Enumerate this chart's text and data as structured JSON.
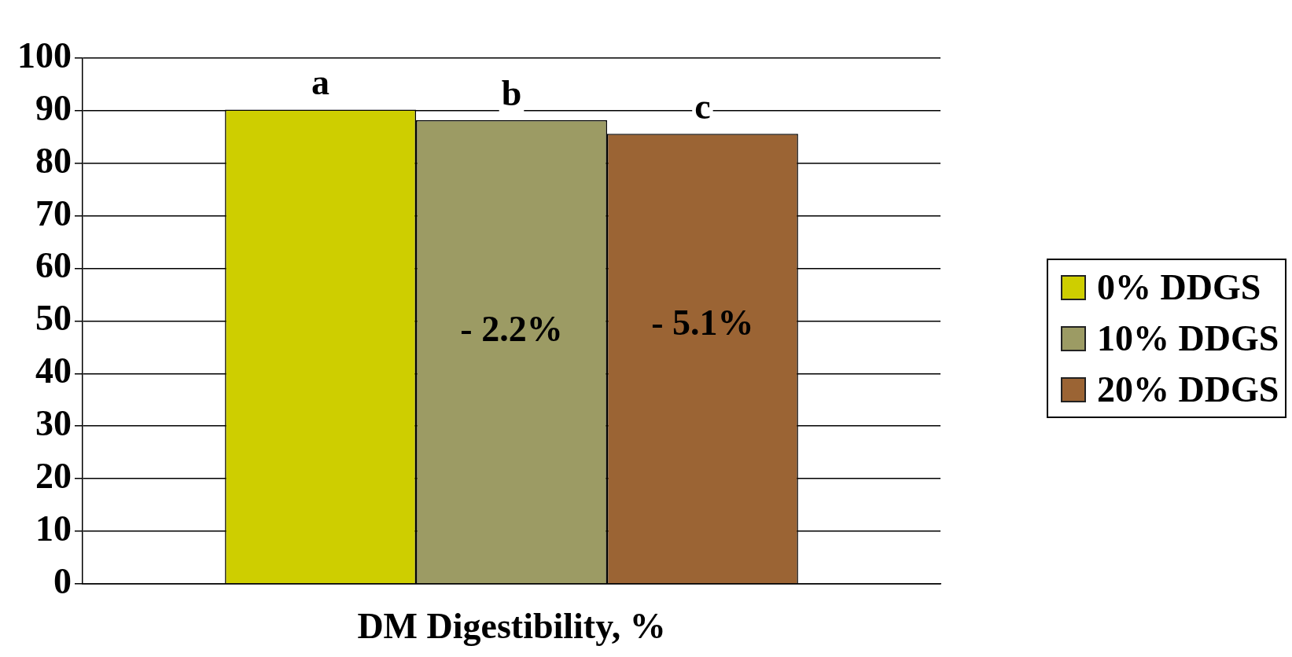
{
  "chart_data": {
    "type": "bar",
    "xlabel": "DM Digestibility, %",
    "categories": [
      null
    ],
    "series": [
      {
        "name": "0% DDGS",
        "color": "#cece00",
        "values": [
          90.2
        ],
        "value_labels": [
          "a"
        ]
      },
      {
        "name": "10% DDGS",
        "color": "#9c9b64",
        "values": [
          88.2
        ],
        "value_labels": [
          "b"
        ]
      },
      {
        "name": "20% DDGS",
        "color": "#9b6434",
        "values": [
          85.6
        ],
        "value_labels": [
          "c"
        ]
      }
    ],
    "ylim": [
      0,
      100
    ],
    "yticks": [
      0,
      10,
      20,
      30,
      40,
      50,
      60,
      70,
      80,
      90,
      100
    ],
    "grid": "y",
    "legend": "right",
    "annotations": [
      "- 2.2%",
      "- 5.1%"
    ]
  }
}
